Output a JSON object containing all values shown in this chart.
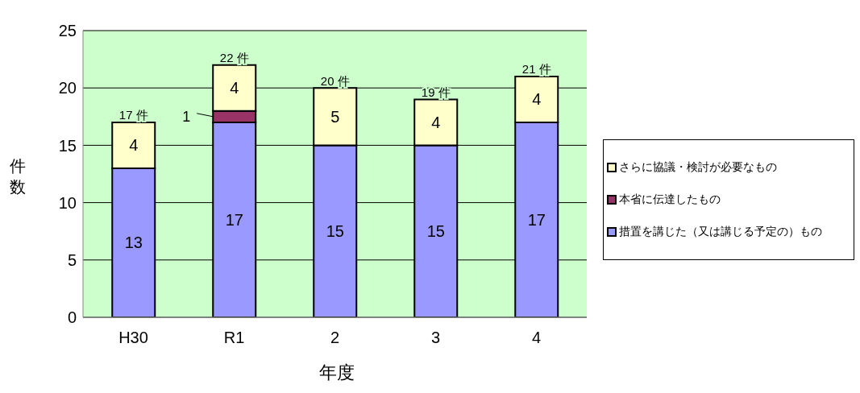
{
  "chart_data": {
    "type": "bar",
    "stacked": true,
    "xlabel": "年度",
    "ylabel": "件数",
    "categories": [
      "H30",
      "R1",
      "2",
      "3",
      "4"
    ],
    "series": [
      {
        "name": "措置を講じた（又は講じる予定の）もの",
        "color": "#9999ff",
        "values": [
          13,
          17,
          15,
          15,
          17
        ],
        "value_labels": [
          "13",
          "17",
          "15",
          "15",
          "17"
        ]
      },
      {
        "name": "本省に伝達したもの",
        "color": "#993366",
        "values": [
          0,
          1,
          0,
          0,
          0
        ],
        "value_labels": [
          null,
          "1",
          null,
          null,
          null
        ]
      },
      {
        "name": "さらに協議・検討が必要なもの",
        "color": "#ffffcc",
        "values": [
          4,
          4,
          5,
          4,
          4
        ],
        "value_labels": [
          "4",
          "4",
          "5",
          "4",
          "4"
        ]
      }
    ],
    "totals": [
      "17 件",
      "22 件",
      "20 件",
      "19 件",
      "21 件"
    ],
    "ylim": [
      0,
      25
    ],
    "yticks": [
      0,
      5,
      10,
      15,
      20,
      25
    ],
    "grid": "y",
    "legend": "right"
  }
}
